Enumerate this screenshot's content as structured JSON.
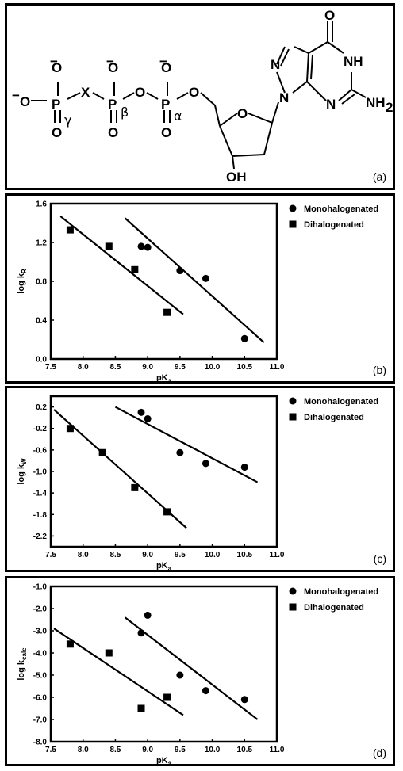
{
  "panels": {
    "a": {
      "label": "(a)",
      "atoms": {
        "o_minus_top_gamma": "O",
        "minus_gamma": "−",
        "o_minus_left": "O",
        "minus_left": "−",
        "p_gamma": "P",
        "o_gamma_bottom": "O",
        "gamma": "γ",
        "x": "X",
        "o_minus_top_beta": "O",
        "minus_beta": "−",
        "p_beta": "P",
        "o_beta_bottom": "O",
        "beta": "β",
        "o_bridge": "O",
        "o_minus_top_alpha": "O",
        "minus_alpha": "−",
        "p_alpha": "P",
        "o_alpha_bottom": "O",
        "alpha": "α",
        "o_ester": "O",
        "o_ring": "O",
        "oh": "OH",
        "n7": "N",
        "n9": "N",
        "n3": "N",
        "o6": "O",
        "nh1": "NH",
        "nh2": "NH",
        "nh2_sub": "2"
      }
    },
    "b": {
      "label": "(b)"
    },
    "c": {
      "label": "(c)"
    },
    "d": {
      "label": "(d)"
    }
  },
  "chart_data": [
    {
      "type": "scatter",
      "panel": "b",
      "xlabel": "pK",
      "xlabel_sub": "a",
      "ylabel": "log k",
      "ylabel_sub": "R",
      "xlim": [
        7.5,
        11.0
      ],
      "ylim": [
        0.0,
        1.6
      ],
      "xticks": [
        "7.5",
        "8.0",
        "8.5",
        "9.0",
        "9.5",
        "10.0",
        "10.5",
        "11.0"
      ],
      "yticks": [
        "0.0",
        "0.4",
        "0.8",
        "1.2",
        "1.6"
      ],
      "series": [
        {
          "name": "Monohalogenated",
          "marker": "circle",
          "x": [
            8.9,
            9.0,
            9.5,
            9.9,
            10.5
          ],
          "y": [
            1.16,
            1.15,
            0.91,
            0.83,
            0.21
          ],
          "fit": [
            [
              8.65,
              1.45
            ],
            [
              10.8,
              0.17
            ]
          ]
        },
        {
          "name": "Dihalogenated",
          "marker": "square",
          "x": [
            7.8,
            8.4,
            8.8,
            9.3
          ],
          "y": [
            1.33,
            1.16,
            0.92,
            0.48
          ],
          "fit": [
            [
              7.65,
              1.47
            ],
            [
              9.55,
              0.46
            ]
          ]
        }
      ]
    },
    {
      "type": "scatter",
      "panel": "c",
      "xlabel": "pK",
      "xlabel_sub": "a",
      "ylabel": "log k",
      "ylabel_sub": "W",
      "xlim": [
        7.5,
        11.0
      ],
      "ylim": [
        -2.4,
        0.4
      ],
      "xticks": [
        "7.5",
        "8.0",
        "8.5",
        "9.0",
        "9.5",
        "10.0",
        "10.5",
        "11.0"
      ],
      "yticks": [
        "0.2",
        "-0.2",
        "-0.6",
        "-1.0",
        "-1.4",
        "-1.8",
        "-2.2"
      ],
      "series": [
        {
          "name": "Monohalogenated",
          "marker": "circle",
          "x": [
            8.9,
            9.0,
            9.5,
            9.9,
            10.5
          ],
          "y": [
            0.1,
            -0.02,
            -0.65,
            -0.85,
            -0.92
          ],
          "fit": [
            [
              8.5,
              0.2
            ],
            [
              10.7,
              -1.2
            ]
          ]
        },
        {
          "name": "Dihalogenated",
          "marker": "square",
          "x": [
            7.8,
            8.3,
            8.8,
            9.3
          ],
          "y": [
            -0.2,
            -0.65,
            -1.3,
            -1.75
          ],
          "fit": [
            [
              7.55,
              0.15
            ],
            [
              9.6,
              -2.05
            ]
          ]
        }
      ]
    },
    {
      "type": "scatter",
      "panel": "d",
      "xlabel": "pK",
      "xlabel_sub": "a",
      "ylabel": "log k",
      "ylabel_sub": "calc",
      "xlim": [
        7.5,
        11.0
      ],
      "ylim": [
        -8.0,
        -1.0
      ],
      "xticks": [
        "7.5",
        "8.0",
        "8.5",
        "9.0",
        "9.5",
        "10.0",
        "10.5",
        "11.0"
      ],
      "yticks": [
        "-1.0",
        "-2.0",
        "-3.0",
        "-4.0",
        "-5.0",
        "-6.0",
        "-7.0",
        "-8.0"
      ],
      "series": [
        {
          "name": "Monohalogenated",
          "marker": "circle",
          "x": [
            8.9,
            9.0,
            9.5,
            9.9,
            10.5
          ],
          "y": [
            -3.1,
            -2.3,
            -5.0,
            -5.7,
            -6.1
          ],
          "fit": [
            [
              8.65,
              -2.4
            ],
            [
              10.7,
              -7.0
            ]
          ]
        },
        {
          "name": "Dihalogenated",
          "marker": "square",
          "x": [
            7.8,
            8.4,
            8.9,
            9.3
          ],
          "y": [
            -3.6,
            -4.0,
            -6.5,
            -6.0
          ],
          "fit": [
            [
              7.55,
              -2.9
            ],
            [
              9.55,
              -6.8
            ]
          ]
        }
      ]
    }
  ]
}
